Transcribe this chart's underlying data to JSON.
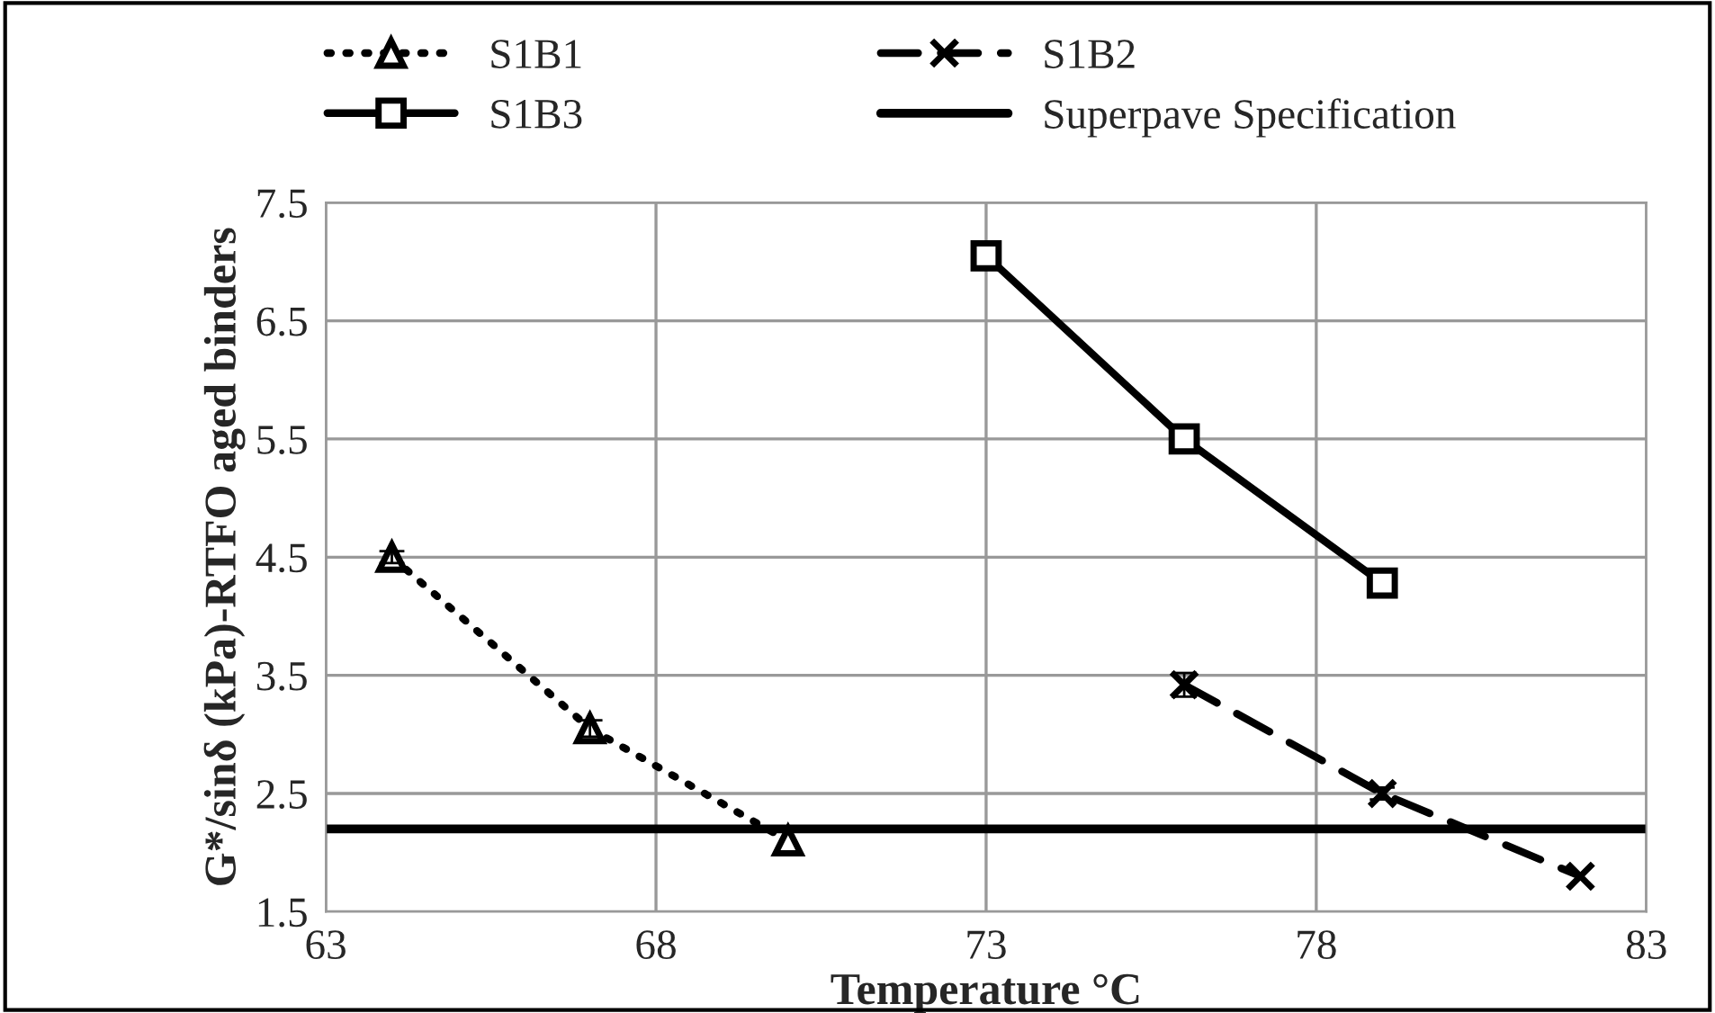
{
  "chart_data": {
    "type": "line",
    "xlabel": "Temperature °C",
    "ylabel": "G*/sinδ (kPa)-RTFO aged binders",
    "xlim": [
      63,
      83
    ],
    "xticks": [
      63,
      68,
      73,
      78,
      83
    ],
    "ylim": [
      1.5,
      7.5
    ],
    "yticks": [
      1.5,
      2.5,
      3.5,
      4.5,
      5.5,
      6.5,
      7.5
    ],
    "grid": true,
    "legend": "top",
    "series": [
      {
        "name": "S1B1",
        "color": "#000000",
        "x": [
          64,
          67,
          70
        ],
        "values": [
          4.5,
          3.05,
          2.1
        ],
        "errors": [
          0.05,
          0.07,
          null
        ],
        "marker": "triangle",
        "line_style": "dotted"
      },
      {
        "name": "S1B2",
        "color": "#000000",
        "x": [
          76,
          79,
          82
        ],
        "values": [
          3.42,
          2.5,
          1.8
        ],
        "errors": [
          0.1,
          0.05,
          null
        ],
        "marker": "cross",
        "line_style": "dashed"
      },
      {
        "name": "S1B3",
        "color": "#000000",
        "x": [
          73,
          76,
          79
        ],
        "values": [
          7.05,
          5.5,
          4.28
        ],
        "marker": "square",
        "line_style": "solid"
      }
    ],
    "ref_lines": [
      {
        "axis": "y",
        "value": 2.2,
        "label": "Superpave Specification",
        "color": "#000000",
        "line_style": "solid"
      }
    ]
  }
}
